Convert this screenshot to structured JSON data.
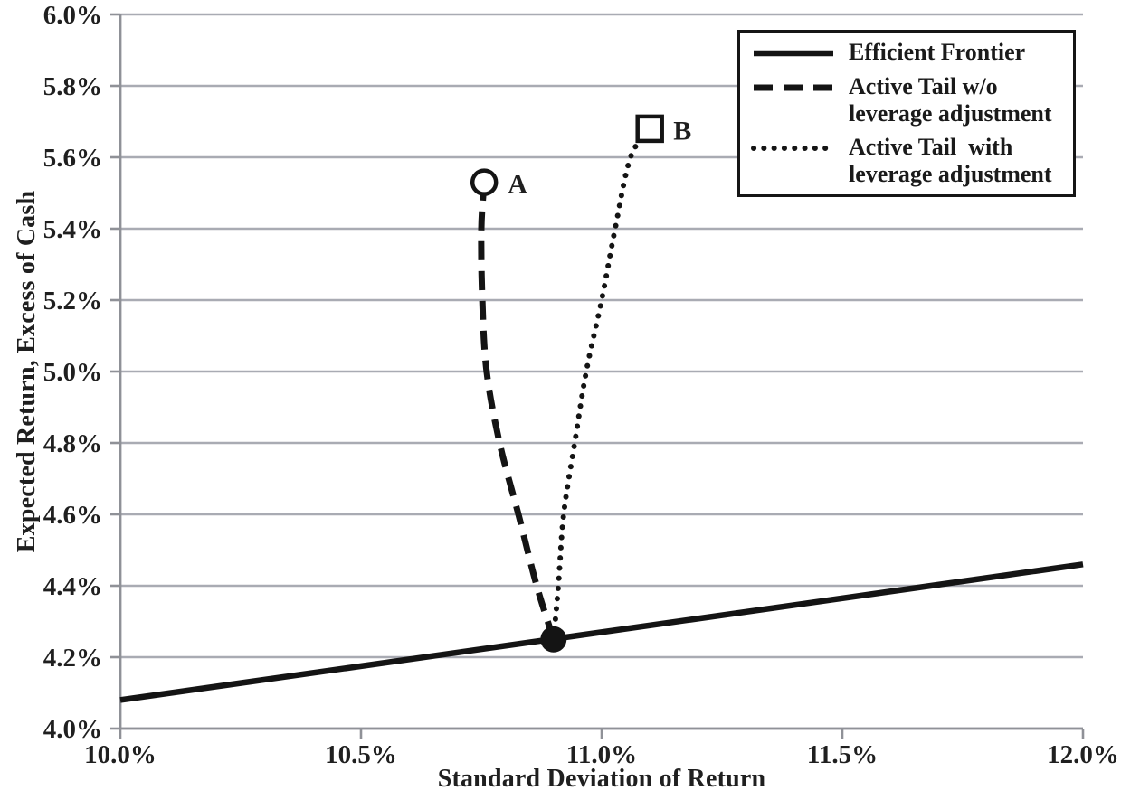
{
  "figure": {
    "background": "#ffffff",
    "grid_color": "#a9abb3",
    "axis_color": "#8f9197",
    "data_color": "#141414",
    "text_color": "#1f1f1f",
    "legend_border_color": "#151515"
  },
  "chart_data": {
    "type": "line",
    "title": "",
    "xlabel": "Standard Deviation of Return",
    "ylabel": "Expected Return, Excess of Cash",
    "xlim": [
      10.0,
      12.0
    ],
    "ylim": [
      4.0,
      6.0
    ],
    "grid": true,
    "legend_position": "top-right",
    "x_ticks": [
      {
        "value": 10.0,
        "label": "10.0%"
      },
      {
        "value": 10.5,
        "label": "10.5%"
      },
      {
        "value": 11.0,
        "label": "11.0%"
      },
      {
        "value": 11.5,
        "label": "11.5%"
      },
      {
        "value": 12.0,
        "label": "12.0%"
      }
    ],
    "y_ticks": [
      {
        "value": 4.0,
        "label": "4.0%"
      },
      {
        "value": 4.2,
        "label": "4.2%"
      },
      {
        "value": 4.4,
        "label": "4.4%"
      },
      {
        "value": 4.6,
        "label": "4.6%"
      },
      {
        "value": 4.8,
        "label": "4.8%"
      },
      {
        "value": 5.0,
        "label": "5.0%"
      },
      {
        "value": 5.2,
        "label": "5.2%"
      },
      {
        "value": 5.4,
        "label": "5.4%"
      },
      {
        "value": 5.6,
        "label": "5.6%"
      },
      {
        "value": 5.8,
        "label": "5.8%"
      },
      {
        "value": 6.0,
        "label": "6.0%"
      }
    ],
    "series": [
      {
        "name": "Efficient Frontier",
        "style": "solid",
        "points": [
          [
            10.0,
            4.08
          ],
          [
            12.0,
            4.46
          ]
        ]
      },
      {
        "name": "Active Tail w/o leverage adjustment",
        "style": "dashed",
        "points": [
          [
            10.9,
            4.25
          ],
          [
            10.865,
            4.4
          ],
          [
            10.827,
            4.6
          ],
          [
            10.788,
            4.8
          ],
          [
            10.761,
            5.0
          ],
          [
            10.752,
            5.2
          ],
          [
            10.75,
            5.4
          ],
          [
            10.756,
            5.53
          ]
        ]
      },
      {
        "name": "Active Tail with leverage adjustment",
        "style": "dotted",
        "points": [
          [
            10.9,
            4.25
          ],
          [
            10.91,
            4.4
          ],
          [
            10.921,
            4.6
          ],
          [
            10.944,
            4.8
          ],
          [
            10.968,
            5.0
          ],
          [
            11.0,
            5.2
          ],
          [
            11.028,
            5.4
          ],
          [
            11.06,
            5.6
          ],
          [
            11.1,
            5.68
          ]
        ]
      }
    ],
    "markers": [
      {
        "label": "",
        "shape": "filled-circle",
        "x": 10.9,
        "y": 4.25
      },
      {
        "label": "A",
        "shape": "open-circle",
        "x": 10.756,
        "y": 5.53
      },
      {
        "label": "B",
        "shape": "open-square",
        "x": 11.1,
        "y": 5.68
      }
    ]
  },
  "legend": {
    "entries": [
      {
        "label": "Efficient Frontier",
        "style": "solid"
      },
      {
        "label": "Active Tail w/o\nleverage adjustment",
        "style": "dashed"
      },
      {
        "label": "Active Tail  with\nleverage adjustment",
        "style": "dotted"
      }
    ]
  }
}
